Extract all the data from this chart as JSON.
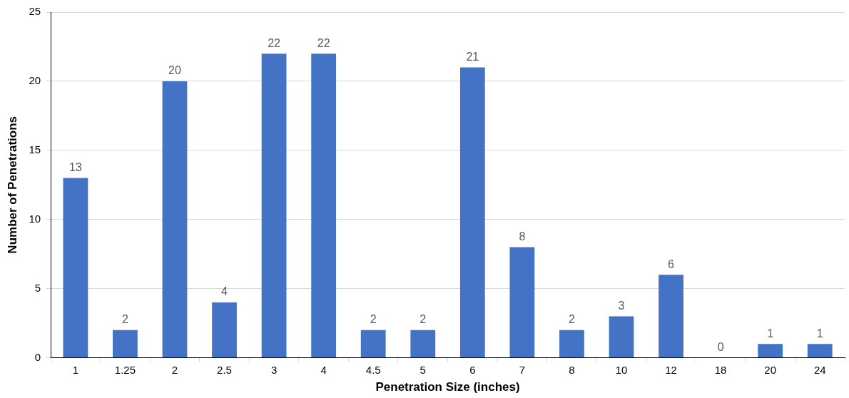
{
  "chart_data": {
    "type": "bar",
    "xlabel": "Penetration Size (inches)",
    "ylabel": "Number of Penetrations",
    "categories": [
      "1",
      "1.25",
      "2",
      "2.5",
      "3",
      "4",
      "4.5",
      "5",
      "6",
      "7",
      "8",
      "10",
      "12",
      "18",
      "20",
      "24"
    ],
    "values": [
      13,
      2,
      20,
      4,
      22,
      22,
      2,
      2,
      21,
      8,
      2,
      3,
      6,
      0,
      1,
      1
    ],
    "color": "#4472c4",
    "ylim": [
      0,
      25
    ],
    "yticks": [
      0,
      5,
      10,
      15,
      20,
      25
    ],
    "grid": "y",
    "data_labels": true,
    "legend": false
  }
}
